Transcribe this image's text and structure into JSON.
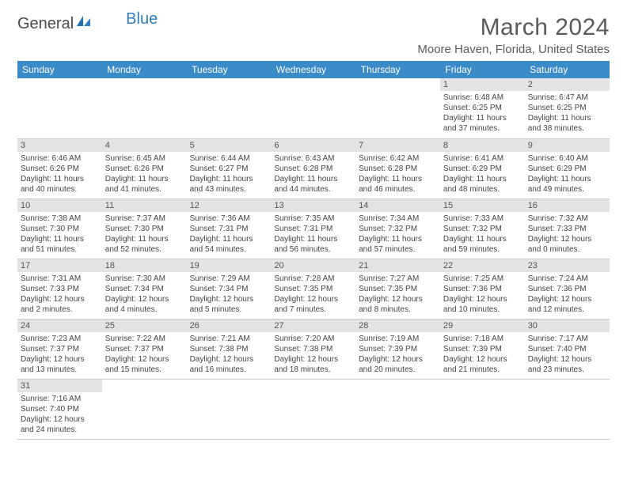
{
  "brand": {
    "part1": "General",
    "part2": "Blue"
  },
  "title": "March 2024",
  "location": "Moore Haven, Florida, United States",
  "header_color": "#3b8bc9",
  "daynum_bg": "#e3e3e3",
  "weekdays": [
    "Sunday",
    "Monday",
    "Tuesday",
    "Wednesday",
    "Thursday",
    "Friday",
    "Saturday"
  ],
  "weeks": [
    [
      null,
      null,
      null,
      null,
      null,
      {
        "n": "1",
        "sr": "6:48 AM",
        "ss": "6:25 PM",
        "dl": "11 hours and 37 minutes."
      },
      {
        "n": "2",
        "sr": "6:47 AM",
        "ss": "6:25 PM",
        "dl": "11 hours and 38 minutes."
      }
    ],
    [
      {
        "n": "3",
        "sr": "6:46 AM",
        "ss": "6:26 PM",
        "dl": "11 hours and 40 minutes."
      },
      {
        "n": "4",
        "sr": "6:45 AM",
        "ss": "6:26 PM",
        "dl": "11 hours and 41 minutes."
      },
      {
        "n": "5",
        "sr": "6:44 AM",
        "ss": "6:27 PM",
        "dl": "11 hours and 43 minutes."
      },
      {
        "n": "6",
        "sr": "6:43 AM",
        "ss": "6:28 PM",
        "dl": "11 hours and 44 minutes."
      },
      {
        "n": "7",
        "sr": "6:42 AM",
        "ss": "6:28 PM",
        "dl": "11 hours and 46 minutes."
      },
      {
        "n": "8",
        "sr": "6:41 AM",
        "ss": "6:29 PM",
        "dl": "11 hours and 48 minutes."
      },
      {
        "n": "9",
        "sr": "6:40 AM",
        "ss": "6:29 PM",
        "dl": "11 hours and 49 minutes."
      }
    ],
    [
      {
        "n": "10",
        "sr": "7:38 AM",
        "ss": "7:30 PM",
        "dl": "11 hours and 51 minutes."
      },
      {
        "n": "11",
        "sr": "7:37 AM",
        "ss": "7:30 PM",
        "dl": "11 hours and 52 minutes."
      },
      {
        "n": "12",
        "sr": "7:36 AM",
        "ss": "7:31 PM",
        "dl": "11 hours and 54 minutes."
      },
      {
        "n": "13",
        "sr": "7:35 AM",
        "ss": "7:31 PM",
        "dl": "11 hours and 56 minutes."
      },
      {
        "n": "14",
        "sr": "7:34 AM",
        "ss": "7:32 PM",
        "dl": "11 hours and 57 minutes."
      },
      {
        "n": "15",
        "sr": "7:33 AM",
        "ss": "7:32 PM",
        "dl": "11 hours and 59 minutes."
      },
      {
        "n": "16",
        "sr": "7:32 AM",
        "ss": "7:33 PM",
        "dl": "12 hours and 0 minutes."
      }
    ],
    [
      {
        "n": "17",
        "sr": "7:31 AM",
        "ss": "7:33 PM",
        "dl": "12 hours and 2 minutes."
      },
      {
        "n": "18",
        "sr": "7:30 AM",
        "ss": "7:34 PM",
        "dl": "12 hours and 4 minutes."
      },
      {
        "n": "19",
        "sr": "7:29 AM",
        "ss": "7:34 PM",
        "dl": "12 hours and 5 minutes."
      },
      {
        "n": "20",
        "sr": "7:28 AM",
        "ss": "7:35 PM",
        "dl": "12 hours and 7 minutes."
      },
      {
        "n": "21",
        "sr": "7:27 AM",
        "ss": "7:35 PM",
        "dl": "12 hours and 8 minutes."
      },
      {
        "n": "22",
        "sr": "7:25 AM",
        "ss": "7:36 PM",
        "dl": "12 hours and 10 minutes."
      },
      {
        "n": "23",
        "sr": "7:24 AM",
        "ss": "7:36 PM",
        "dl": "12 hours and 12 minutes."
      }
    ],
    [
      {
        "n": "24",
        "sr": "7:23 AM",
        "ss": "7:37 PM",
        "dl": "12 hours and 13 minutes."
      },
      {
        "n": "25",
        "sr": "7:22 AM",
        "ss": "7:37 PM",
        "dl": "12 hours and 15 minutes."
      },
      {
        "n": "26",
        "sr": "7:21 AM",
        "ss": "7:38 PM",
        "dl": "12 hours and 16 minutes."
      },
      {
        "n": "27",
        "sr": "7:20 AM",
        "ss": "7:38 PM",
        "dl": "12 hours and 18 minutes."
      },
      {
        "n": "28",
        "sr": "7:19 AM",
        "ss": "7:39 PM",
        "dl": "12 hours and 20 minutes."
      },
      {
        "n": "29",
        "sr": "7:18 AM",
        "ss": "7:39 PM",
        "dl": "12 hours and 21 minutes."
      },
      {
        "n": "30",
        "sr": "7:17 AM",
        "ss": "7:40 PM",
        "dl": "12 hours and 23 minutes."
      }
    ],
    [
      {
        "n": "31",
        "sr": "7:16 AM",
        "ss": "7:40 PM",
        "dl": "12 hours and 24 minutes."
      },
      null,
      null,
      null,
      null,
      null,
      null
    ]
  ],
  "labels": {
    "sunrise": "Sunrise: ",
    "sunset": "Sunset: ",
    "daylight": "Daylight: "
  }
}
